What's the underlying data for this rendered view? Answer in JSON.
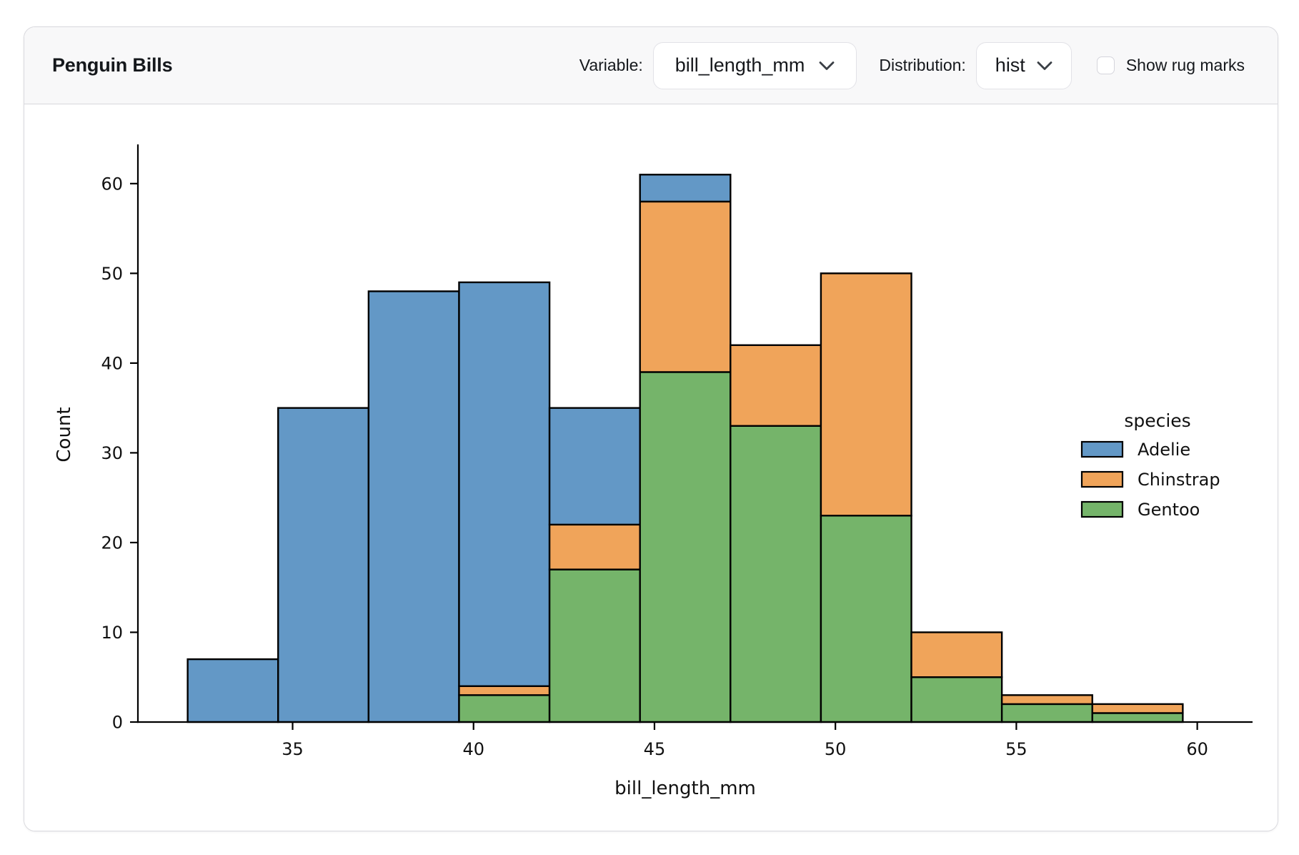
{
  "header": {
    "title": "Penguin Bills",
    "variable_label": "Variable:",
    "variable_value": "bill_length_mm",
    "distribution_label": "Distribution:",
    "distribution_value": "hist",
    "rug_label": "Show rug marks",
    "rug_checked": false,
    "icons": {
      "variable_chevron": "chevron-down",
      "distribution_chevron": "chevron-down"
    }
  },
  "chart_data": {
    "type": "bar",
    "subtype": "stacked-histogram",
    "title": "",
    "xlabel": "bill_length_mm",
    "ylabel": "Count",
    "bin_edges": [
      32.1,
      34.6,
      37.1,
      39.6,
      42.1,
      44.6,
      47.1,
      49.6,
      52.1,
      54.6,
      57.1,
      59.6
    ],
    "series": [
      {
        "name": "Adelie",
        "color": "#6398C6",
        "values": [
          7,
          35,
          48,
          45,
          13,
          3,
          0,
          0,
          0,
          0,
          0
        ]
      },
      {
        "name": "Chinstrap",
        "color": "#F0A45A",
        "values": [
          0,
          0,
          0,
          1,
          5,
          19,
          9,
          27,
          5,
          1,
          1
        ]
      },
      {
        "name": "Gentoo",
        "color": "#75B46A",
        "values": [
          0,
          0,
          0,
          3,
          17,
          39,
          33,
          23,
          5,
          2,
          1
        ]
      }
    ],
    "stack_order_bottom_to_top": [
      "Gentoo",
      "Chinstrap",
      "Adelie"
    ],
    "bin_totals": [
      7,
      35,
      48,
      49,
      35,
      61,
      42,
      50,
      10,
      3,
      2
    ],
    "x_ticks": [
      35,
      40,
      45,
      50,
      55,
      60
    ],
    "y_ticks": [
      0,
      10,
      20,
      30,
      40,
      50,
      60
    ],
    "xlim": [
      30.725,
      60.975
    ],
    "ylim": [
      0,
      64.05
    ],
    "grid": false,
    "legend_title": "species",
    "legend_entries": [
      "Adelie",
      "Chinstrap",
      "Gentoo"
    ],
    "legend_position": "right",
    "bar_edge_color": "#000000",
    "axis_color": "#000000"
  }
}
